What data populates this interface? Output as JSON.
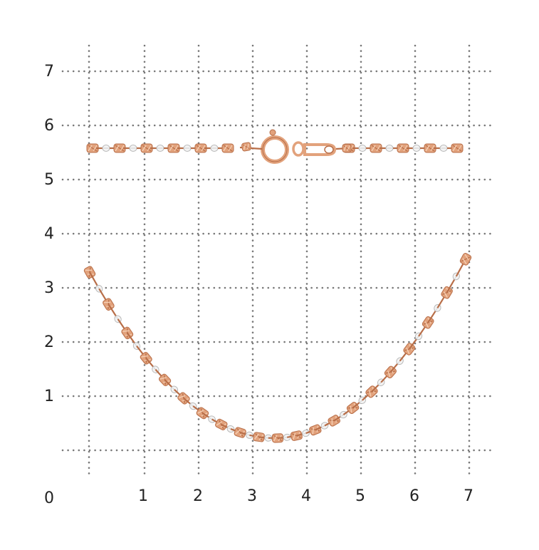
{
  "measurement_grid": {
    "x_labels": [
      "0",
      "1",
      "2",
      "3",
      "4",
      "5",
      "6",
      "7"
    ],
    "y_labels": [
      "1",
      "2",
      "3",
      "4",
      "5",
      "6",
      "7"
    ],
    "grid_color": "#777777",
    "label_color": "#222222"
  },
  "product": {
    "metal_color": "#e2a27c",
    "metal_shade": "#b86e48",
    "silver_color": "#f3f3f3",
    "silver_shade": "#b9b9b9"
  }
}
